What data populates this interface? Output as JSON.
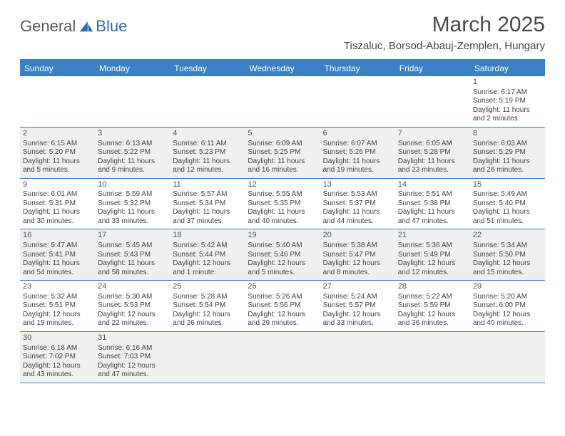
{
  "logo": {
    "text1": "General",
    "text2": "Blue"
  },
  "title": "March 2025",
  "location": "Tiszaluc, Borsod-Abauj-Zemplen, Hungary",
  "colors": {
    "header_bg": "#3b7fc4",
    "header_text": "#ffffff",
    "cell_shaded": "#f0f0f0",
    "border": "#3b7fc4",
    "title_text": "#4a4a4a",
    "body_text": "#444444"
  },
  "day_names": [
    "Sunday",
    "Monday",
    "Tuesday",
    "Wednesday",
    "Thursday",
    "Friday",
    "Saturday"
  ],
  "weeks": [
    [
      {
        "blank": true
      },
      {
        "blank": true
      },
      {
        "blank": true
      },
      {
        "blank": true
      },
      {
        "blank": true
      },
      {
        "blank": true
      },
      {
        "day": "1",
        "sunrise": "Sunrise: 6:17 AM",
        "sunset": "Sunset: 5:19 PM",
        "daylight": "Daylight: 11 hours and 2 minutes.",
        "shaded": false
      }
    ],
    [
      {
        "day": "2",
        "sunrise": "Sunrise: 6:15 AM",
        "sunset": "Sunset: 5:20 PM",
        "daylight": "Daylight: 11 hours and 5 minutes.",
        "shaded": true
      },
      {
        "day": "3",
        "sunrise": "Sunrise: 6:13 AM",
        "sunset": "Sunset: 5:22 PM",
        "daylight": "Daylight: 11 hours and 9 minutes.",
        "shaded": true
      },
      {
        "day": "4",
        "sunrise": "Sunrise: 6:11 AM",
        "sunset": "Sunset: 5:23 PM",
        "daylight": "Daylight: 11 hours and 12 minutes.",
        "shaded": true
      },
      {
        "day": "5",
        "sunrise": "Sunrise: 6:09 AM",
        "sunset": "Sunset: 5:25 PM",
        "daylight": "Daylight: 11 hours and 16 minutes.",
        "shaded": true
      },
      {
        "day": "6",
        "sunrise": "Sunrise: 6:07 AM",
        "sunset": "Sunset: 5:26 PM",
        "daylight": "Daylight: 11 hours and 19 minutes.",
        "shaded": true
      },
      {
        "day": "7",
        "sunrise": "Sunrise: 6:05 AM",
        "sunset": "Sunset: 5:28 PM",
        "daylight": "Daylight: 11 hours and 23 minutes.",
        "shaded": true
      },
      {
        "day": "8",
        "sunrise": "Sunrise: 6:03 AM",
        "sunset": "Sunset: 5:29 PM",
        "daylight": "Daylight: 11 hours and 26 minutes.",
        "shaded": true
      }
    ],
    [
      {
        "day": "9",
        "sunrise": "Sunrise: 6:01 AM",
        "sunset": "Sunset: 5:31 PM",
        "daylight": "Daylight: 11 hours and 30 minutes.",
        "shaded": false
      },
      {
        "day": "10",
        "sunrise": "Sunrise: 5:59 AM",
        "sunset": "Sunset: 5:32 PM",
        "daylight": "Daylight: 11 hours and 33 minutes.",
        "shaded": false
      },
      {
        "day": "11",
        "sunrise": "Sunrise: 5:57 AM",
        "sunset": "Sunset: 5:34 PM",
        "daylight": "Daylight: 11 hours and 37 minutes.",
        "shaded": false
      },
      {
        "day": "12",
        "sunrise": "Sunrise: 5:55 AM",
        "sunset": "Sunset: 5:35 PM",
        "daylight": "Daylight: 11 hours and 40 minutes.",
        "shaded": false
      },
      {
        "day": "13",
        "sunrise": "Sunrise: 5:53 AM",
        "sunset": "Sunset: 5:37 PM",
        "daylight": "Daylight: 11 hours and 44 minutes.",
        "shaded": false
      },
      {
        "day": "14",
        "sunrise": "Sunrise: 5:51 AM",
        "sunset": "Sunset: 5:38 PM",
        "daylight": "Daylight: 11 hours and 47 minutes.",
        "shaded": false
      },
      {
        "day": "15",
        "sunrise": "Sunrise: 5:49 AM",
        "sunset": "Sunset: 5:40 PM",
        "daylight": "Daylight: 11 hours and 51 minutes.",
        "shaded": false
      }
    ],
    [
      {
        "day": "16",
        "sunrise": "Sunrise: 5:47 AM",
        "sunset": "Sunset: 5:41 PM",
        "daylight": "Daylight: 11 hours and 54 minutes.",
        "shaded": true
      },
      {
        "day": "17",
        "sunrise": "Sunrise: 5:45 AM",
        "sunset": "Sunset: 5:43 PM",
        "daylight": "Daylight: 11 hours and 58 minutes.",
        "shaded": true
      },
      {
        "day": "18",
        "sunrise": "Sunrise: 5:42 AM",
        "sunset": "Sunset: 5:44 PM",
        "daylight": "Daylight: 12 hours and 1 minute.",
        "shaded": true
      },
      {
        "day": "19",
        "sunrise": "Sunrise: 5:40 AM",
        "sunset": "Sunset: 5:46 PM",
        "daylight": "Daylight: 12 hours and 5 minutes.",
        "shaded": true
      },
      {
        "day": "20",
        "sunrise": "Sunrise: 5:38 AM",
        "sunset": "Sunset: 5:47 PM",
        "daylight": "Daylight: 12 hours and 8 minutes.",
        "shaded": true
      },
      {
        "day": "21",
        "sunrise": "Sunrise: 5:36 AM",
        "sunset": "Sunset: 5:49 PM",
        "daylight": "Daylight: 12 hours and 12 minutes.",
        "shaded": true
      },
      {
        "day": "22",
        "sunrise": "Sunrise: 5:34 AM",
        "sunset": "Sunset: 5:50 PM",
        "daylight": "Daylight: 12 hours and 15 minutes.",
        "shaded": true
      }
    ],
    [
      {
        "day": "23",
        "sunrise": "Sunrise: 5:32 AM",
        "sunset": "Sunset: 5:51 PM",
        "daylight": "Daylight: 12 hours and 19 minutes.",
        "shaded": false
      },
      {
        "day": "24",
        "sunrise": "Sunrise: 5:30 AM",
        "sunset": "Sunset: 5:53 PM",
        "daylight": "Daylight: 12 hours and 22 minutes.",
        "shaded": false
      },
      {
        "day": "25",
        "sunrise": "Sunrise: 5:28 AM",
        "sunset": "Sunset: 5:54 PM",
        "daylight": "Daylight: 12 hours and 26 minutes.",
        "shaded": false
      },
      {
        "day": "26",
        "sunrise": "Sunrise: 5:26 AM",
        "sunset": "Sunset: 5:56 PM",
        "daylight": "Daylight: 12 hours and 29 minutes.",
        "shaded": false
      },
      {
        "day": "27",
        "sunrise": "Sunrise: 5:24 AM",
        "sunset": "Sunset: 5:57 PM",
        "daylight": "Daylight: 12 hours and 33 minutes.",
        "shaded": false
      },
      {
        "day": "28",
        "sunrise": "Sunrise: 5:22 AM",
        "sunset": "Sunset: 5:59 PM",
        "daylight": "Daylight: 12 hours and 36 minutes.",
        "shaded": false
      },
      {
        "day": "29",
        "sunrise": "Sunrise: 5:20 AM",
        "sunset": "Sunset: 6:00 PM",
        "daylight": "Daylight: 12 hours and 40 minutes.",
        "shaded": false
      }
    ],
    [
      {
        "day": "30",
        "sunrise": "Sunrise: 6:18 AM",
        "sunset": "Sunset: 7:02 PM",
        "daylight": "Daylight: 12 hours and 43 minutes.",
        "shaded": true
      },
      {
        "day": "31",
        "sunrise": "Sunrise: 6:16 AM",
        "sunset": "Sunset: 7:03 PM",
        "daylight": "Daylight: 12 hours and 47 minutes.",
        "shaded": true
      },
      {
        "blank": true,
        "shaded": true
      },
      {
        "blank": true,
        "shaded": true
      },
      {
        "blank": true,
        "shaded": true
      },
      {
        "blank": true,
        "shaded": true
      },
      {
        "blank": true,
        "shaded": true
      }
    ]
  ]
}
